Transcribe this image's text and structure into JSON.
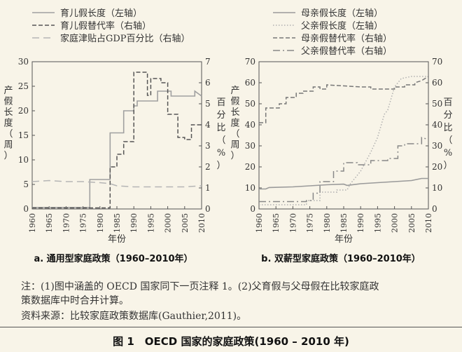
{
  "chart_data": [
    {
      "type": "line",
      "title": "a. 通用型家庭政策（1960–2010年）",
      "xlabel": "年份",
      "ylabel_left": "产假长度（周）",
      "ylabel_right": "百分比（%）",
      "xlim": [
        1960,
        2010
      ],
      "ylim_left": [
        0,
        30
      ],
      "ylim_right": [
        0,
        7
      ],
      "x_ticks": [
        "1960",
        "1965",
        "1970",
        "1975",
        "1980",
        "1985",
        "1990",
        "1995",
        "2000",
        "2005",
        "2010"
      ],
      "y_ticks_left": [
        "0",
        "5",
        "10",
        "15",
        "20",
        "25",
        "30"
      ],
      "y_ticks_right": [
        "0",
        "1",
        "2",
        "3",
        "4",
        "5",
        "6",
        "7"
      ],
      "legend_position": "top",
      "series": [
        {
          "name": "育儿假长度（左轴）",
          "axis": "left",
          "style": "solid",
          "color": "#a0a0a0",
          "points": [
            [
              1960,
              0.3
            ],
            [
              1977,
              0.3
            ],
            [
              1977,
              6
            ],
            [
              1983,
              6
            ],
            [
              1983,
              15.5
            ],
            [
              1987,
              15.5
            ],
            [
              1987,
              20
            ],
            [
              1990,
              20
            ],
            [
              1990,
              21
            ],
            [
              1991,
              21
            ],
            [
              1991,
              22
            ],
            [
              1997,
              22
            ],
            [
              1997,
              24
            ],
            [
              2001,
              24
            ],
            [
              2001,
              23
            ],
            [
              2008,
              23
            ],
            [
              2008,
              24
            ],
            [
              2010,
              23
            ]
          ]
        },
        {
          "name": "育儿假替代率（右轴）",
          "axis": "right",
          "style": "dashed",
          "color": "#555555",
          "points": [
            [
              1960,
              0.05
            ],
            [
              1983,
              0.05
            ],
            [
              1983,
              2
            ],
            [
              1985,
              2
            ],
            [
              1985,
              2.6
            ],
            [
              1987,
              2.6
            ],
            [
              1987,
              3.2
            ],
            [
              1990,
              3.2
            ],
            [
              1990,
              6.5
            ],
            [
              1994,
              6.5
            ],
            [
              1994,
              5.4
            ],
            [
              1995,
              5.4
            ],
            [
              1995,
              6.2
            ],
            [
              1998,
              6.2
            ],
            [
              1998,
              6
            ],
            [
              2000,
              6
            ],
            [
              2000,
              4.5
            ],
            [
              2003,
              4.5
            ],
            [
              2003,
              3.4
            ],
            [
              2005,
              3.4
            ],
            [
              2005,
              3.3
            ],
            [
              2007,
              3.3
            ],
            [
              2007,
              4
            ],
            [
              2010,
              4
            ]
          ]
        },
        {
          "name": "家庭津贴占GDP百分比（右轴）",
          "axis": "right",
          "style": "longdash",
          "color": "#b5b5b5",
          "points": [
            [
              1960,
              1.3
            ],
            [
              1965,
              1.35
            ],
            [
              1970,
              1.3
            ],
            [
              1975,
              1.3
            ],
            [
              1980,
              1.25
            ],
            [
              1983,
              1.2
            ],
            [
              1985,
              1.1
            ],
            [
              1990,
              1.05
            ],
            [
              1995,
              1.05
            ],
            [
              2000,
              1.05
            ],
            [
              2005,
              1.05
            ],
            [
              2010,
              1.1
            ]
          ]
        }
      ]
    },
    {
      "type": "line",
      "title": "b. 双薪型家庭政策（1960–2010年）",
      "xlabel": "年份",
      "ylabel_left": "产假长度（周）",
      "ylabel_right": "百分比（%）",
      "xlim": [
        1960,
        2010
      ],
      "ylim_left": [
        0,
        70
      ],
      "ylim_right": [
        0,
        70
      ],
      "x_ticks": [
        "1960",
        "1965",
        "1970",
        "1975",
        "1980",
        "1985",
        "1990",
        "1995",
        "2000",
        "2005",
        "2010"
      ],
      "y_ticks_left": [
        "0",
        "10",
        "20",
        "30",
        "40",
        "50",
        "60",
        "70"
      ],
      "y_ticks_right": [
        "0",
        "10",
        "20",
        "30",
        "40",
        "50",
        "60",
        "70"
      ],
      "legend_position": "top",
      "series": [
        {
          "name": "母亲假长度（左轴）",
          "axis": "left",
          "style": "solid",
          "color": "#9a9a9a",
          "points": [
            [
              1960,
              9.5
            ],
            [
              1962,
              9.5
            ],
            [
              1963,
              10.2
            ],
            [
              1970,
              10.5
            ],
            [
              1975,
              11
            ],
            [
              1980,
              11.5
            ],
            [
              1985,
              11.8
            ],
            [
              1986,
              11.2
            ],
            [
              1990,
              12
            ],
            [
              1995,
              12.5
            ],
            [
              2000,
              13
            ],
            [
              2005,
              13.5
            ],
            [
              2008,
              14.5
            ],
            [
              2010,
              14.5
            ]
          ]
        },
        {
          "name": "父亲假长度（左轴）",
          "axis": "left",
          "style": "dotted",
          "color": "#b0b0b0",
          "points": [
            [
              1960,
              2
            ],
            [
              1974,
              2
            ],
            [
              1974,
              4
            ],
            [
              1978,
              4
            ],
            [
              1978,
              8
            ],
            [
              1983,
              8
            ],
            [
              1983,
              9
            ],
            [
              1986,
              9
            ],
            [
              1987,
              12
            ],
            [
              1990,
              18
            ],
            [
              1993,
              27
            ],
            [
              1995,
              34
            ],
            [
              1997,
              45
            ],
            [
              1998,
              47
            ],
            [
              2000,
              58
            ],
            [
              2002,
              62
            ],
            [
              2005,
              63
            ],
            [
              2007,
              63
            ],
            [
              2010,
              63
            ]
          ]
        },
        {
          "name": "母亲假替代率（右轴）",
          "axis": "right",
          "style": "dashed",
          "color": "#777777",
          "points": [
            [
              1960,
              41
            ],
            [
              1962,
              41
            ],
            [
              1962,
              48
            ],
            [
              1966,
              48
            ],
            [
              1966,
              50
            ],
            [
              1968,
              50
            ],
            [
              1968,
              53
            ],
            [
              1971,
              53
            ],
            [
              1971,
              55
            ],
            [
              1973,
              55
            ],
            [
              1973,
              56
            ],
            [
              1976,
              56
            ],
            [
              1976,
              58
            ],
            [
              1978,
              58
            ],
            [
              1978,
              57
            ],
            [
              1980,
              57
            ],
            [
              1980,
              59
            ],
            [
              1990,
              58
            ],
            [
              1993,
              58
            ],
            [
              1993,
              57
            ],
            [
              2000,
              57
            ],
            [
              2000,
              58
            ],
            [
              2003,
              58
            ],
            [
              2003,
              59
            ],
            [
              2006,
              59
            ],
            [
              2006,
              60
            ],
            [
              2008,
              61
            ],
            [
              2010,
              63
            ]
          ]
        },
        {
          "name": "父亲假替代率（右轴）",
          "axis": "right",
          "style": "dashdot",
          "color": "#888888",
          "points": [
            [
              1960,
              3.5
            ],
            [
              1974,
              3.5
            ],
            [
              1974,
              4
            ],
            [
              1976,
              4
            ],
            [
              1976,
              7.5
            ],
            [
              1978,
              7.5
            ],
            [
              1978,
              13
            ],
            [
              1982,
              13
            ],
            [
              1982,
              18
            ],
            [
              1985,
              18
            ],
            [
              1985,
              22
            ],
            [
              1989,
              22
            ],
            [
              1989,
              21
            ],
            [
              1993,
              21
            ],
            [
              1993,
              23
            ],
            [
              1998,
              23
            ],
            [
              1998,
              24
            ],
            [
              2001,
              24
            ],
            [
              2001,
              30
            ],
            [
              2003,
              30
            ],
            [
              2003,
              31
            ],
            [
              2008,
              31
            ],
            [
              2008,
              34
            ],
            [
              2010,
              33
            ]
          ]
        }
      ]
    }
  ],
  "notes": {
    "line1": "注：(1)图中涵盖的 OECD 国家同下一页注释 1。(2)父育假与父母假在比较家庭政",
    "line2": "策数据库中时合并计算。",
    "source": "资料来源：比较家庭政策数据库(Gauthier,2011)。"
  },
  "caption": "图 1　OECD 国家的家庭政策(1960 – 2010 年)"
}
